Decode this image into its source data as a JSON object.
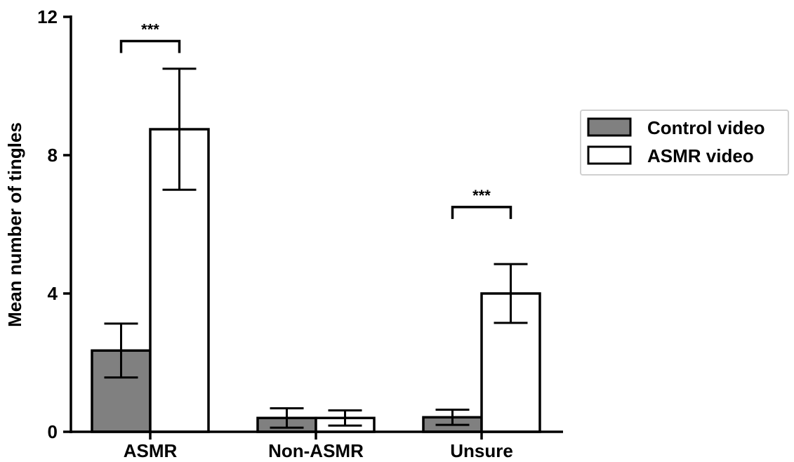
{
  "chart_data": {
    "type": "bar",
    "categories": [
      "ASMR",
      "Non-ASMR",
      "Unsure"
    ],
    "series": [
      {
        "name": "Control video",
        "color": "#808080",
        "values": [
          2.35,
          0.4,
          0.42
        ],
        "errors": [
          0.78,
          0.28,
          0.22
        ]
      },
      {
        "name": "ASMR video",
        "color": "#ffffff",
        "values": [
          8.75,
          0.4,
          4.0
        ],
        "errors": [
          1.75,
          0.22,
          0.85
        ]
      }
    ],
    "xlabel": "",
    "ylabel": "Mean number of tingles",
    "ylim": [
      0,
      12
    ],
    "yticks": [
      "0",
      "4",
      "8",
      "12"
    ],
    "grid": false,
    "legend_position": "right",
    "annotations": [
      {
        "category": "ASMR",
        "text": "***",
        "level": 11.3
      },
      {
        "category": "Unsure",
        "text": "***",
        "level": 6.5
      }
    ]
  }
}
